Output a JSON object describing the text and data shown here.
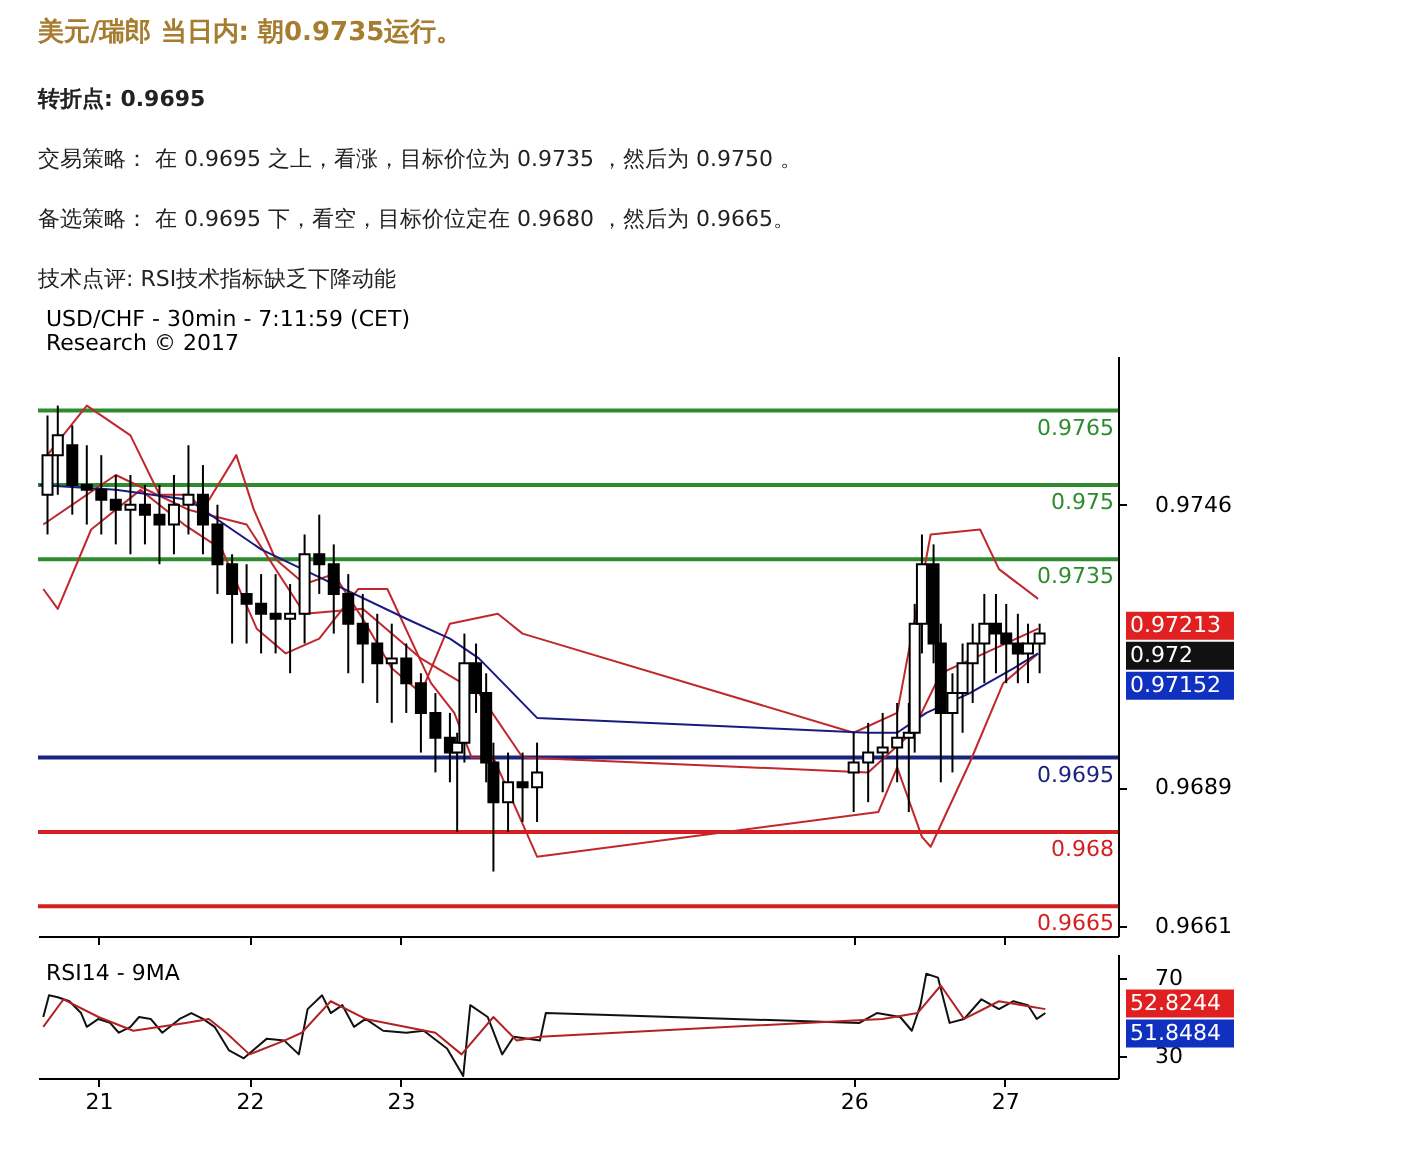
{
  "chart_data": [
    {
      "type": "candlestick",
      "title": "美元/瑞郎 当日内: 朝0.9735运行。",
      "annotations": [
        "转折点: 0.9695",
        "交易策略： 在 0.9695 之上，看涨，目标价位为 0.9735 ，然后为 0.9750 。",
        "备选策略： 在 0.9695 下，看空，目标价位定在 0.9680 ，然后为 0.9665。",
        "技术点评: RSI技术指标缺乏下降动能",
        "USD/CHF - 30min - 7:11:59 (CET)",
        "Research © 2017",
        "0.97213",
        "0.972",
        "0.97152"
      ],
      "x": [
        20.663,
        20.731,
        20.827,
        20.923,
        21.019,
        21.115,
        21.212,
        21.308,
        21.404,
        21.5,
        21.596,
        21.692,
        21.788,
        21.885,
        21.981,
        22.077,
        22.173,
        22.269,
        22.365,
        22.462,
        22.558,
        22.654,
        22.75,
        22.846,
        22.942,
        23.038,
        23.135,
        23.231,
        23.327,
        23.375,
        23.423,
        23.5,
        23.567,
        23.615,
        23.712,
        23.808,
        23.904,
        26.0,
        26.096,
        26.192,
        26.288,
        26.365,
        26.404,
        26.452,
        26.529,
        26.577,
        26.654,
        26.721,
        26.788,
        26.865,
        26.942,
        27.01,
        27.087,
        27.154,
        27.231
      ],
      "ohlc": [
        [
          0.9748,
          0.9764,
          0.974,
          0.9756
        ],
        [
          0.9756,
          0.9766,
          0.9748,
          0.976
        ],
        [
          0.9758,
          0.9762,
          0.9744,
          0.975
        ],
        [
          0.975,
          0.9758,
          0.9742,
          0.9749
        ],
        [
          0.9749,
          0.9756,
          0.974,
          0.9747
        ],
        [
          0.9747,
          0.9752,
          0.9738,
          0.9745
        ],
        [
          0.9745,
          0.9752,
          0.9736,
          0.9746
        ],
        [
          0.9746,
          0.975,
          0.9738,
          0.9744
        ],
        [
          0.9744,
          0.975,
          0.9734,
          0.9742
        ],
        [
          0.9742,
          0.9752,
          0.9736,
          0.9746
        ],
        [
          0.9746,
          0.9758,
          0.974,
          0.9748
        ],
        [
          0.9748,
          0.9754,
          0.9736,
          0.9742
        ],
        [
          0.9742,
          0.9746,
          0.9728,
          0.9734
        ],
        [
          0.9734,
          0.9736,
          0.9718,
          0.9728
        ],
        [
          0.9728,
          0.9734,
          0.9718,
          0.9726
        ],
        [
          0.9726,
          0.9732,
          0.9716,
          0.9724
        ],
        [
          0.9724,
          0.9732,
          0.9716,
          0.9723
        ],
        [
          0.9723,
          0.973,
          0.9712,
          0.9724
        ],
        [
          0.9724,
          0.974,
          0.9718,
          0.9736
        ],
        [
          0.9736,
          0.9744,
          0.9728,
          0.9734
        ],
        [
          0.9734,
          0.9738,
          0.972,
          0.9728
        ],
        [
          0.9728,
          0.9732,
          0.9712,
          0.9722
        ],
        [
          0.9722,
          0.9728,
          0.971,
          0.9718
        ],
        [
          0.9718,
          0.9724,
          0.9706,
          0.9714
        ],
        [
          0.9714,
          0.9722,
          0.9702,
          0.9715
        ],
        [
          0.9715,
          0.9718,
          0.9704,
          0.971
        ],
        [
          0.971,
          0.9712,
          0.9696,
          0.9704
        ],
        [
          0.9704,
          0.9708,
          0.9692,
          0.9699
        ],
        [
          0.9699,
          0.9704,
          0.969,
          0.9696
        ],
        [
          0.9696,
          0.97,
          0.968,
          0.9698
        ],
        [
          0.9698,
          0.972,
          0.9694,
          0.9714
        ],
        [
          0.9714,
          0.9718,
          0.9704,
          0.9708
        ],
        [
          0.9708,
          0.9712,
          0.969,
          0.9694
        ],
        [
          0.9694,
          0.9698,
          0.9672,
          0.9686
        ],
        [
          0.9686,
          0.9696,
          0.968,
          0.969
        ],
        [
          0.969,
          0.9696,
          0.9682,
          0.9689
        ],
        [
          0.9689,
          0.9698,
          0.9682,
          0.9692
        ],
        [
          0.9692,
          0.97,
          0.9684,
          0.9694
        ],
        [
          0.9694,
          0.9702,
          0.9686,
          0.9696
        ],
        [
          0.9696,
          0.9704,
          0.9688,
          0.9697
        ],
        [
          0.9697,
          0.9706,
          0.969,
          0.9699
        ],
        [
          0.9699,
          0.9706,
          0.9684,
          0.97
        ],
        [
          0.97,
          0.9726,
          0.9696,
          0.9722
        ],
        [
          0.9722,
          0.974,
          0.9716,
          0.9734
        ],
        [
          0.9734,
          0.9738,
          0.9714,
          0.9718
        ],
        [
          0.9718,
          0.9722,
          0.969,
          0.9704
        ],
        [
          0.9704,
          0.9712,
          0.9692,
          0.9708
        ],
        [
          0.9708,
          0.9718,
          0.97,
          0.9714
        ],
        [
          0.9714,
          0.9722,
          0.9706,
          0.9718
        ],
        [
          0.9718,
          0.9728,
          0.971,
          0.9722
        ],
        [
          0.9722,
          0.9728,
          0.9712,
          0.972
        ],
        [
          0.972,
          0.9726,
          0.971,
          0.9718
        ],
        [
          0.9718,
          0.9724,
          0.971,
          0.9716
        ],
        [
          0.9716,
          0.9722,
          0.971,
          0.9718
        ],
        [
          0.9718,
          0.9722,
          0.9712,
          0.972
        ]
      ],
      "series": [
        {
          "type": "line",
          "color": "#c0282d",
          "x": [
            20.635,
            20.923,
            21.212,
            21.404,
            21.596,
            21.692,
            21.913,
            22.029,
            22.173,
            22.365,
            22.558,
            22.75,
            22.942,
            23.135,
            23.327,
            23.644,
            23.808,
            26.0,
            26.288,
            26.51,
            26.837,
            26.962,
            27.221
          ],
          "values": [
            0.9755,
            0.9766,
            0.976,
            0.9748,
            0.9748,
            0.9745,
            0.9756,
            0.9745,
            0.9735,
            0.973,
            0.9732,
            0.9723,
            0.9713,
            0.9708,
            0.9722,
            0.9724,
            0.972,
            0.97,
            0.9704,
            0.974,
            0.9741,
            0.9733,
            0.9727
          ]
        },
        {
          "type": "line",
          "color": "#c0282d",
          "x": [
            20.635,
            20.731,
            20.952,
            21.279,
            21.567,
            21.817,
            22.048,
            22.24,
            22.462,
            22.721,
            22.913,
            23.202,
            23.356,
            23.471,
            23.615,
            23.904,
            26.163,
            26.288,
            26.452,
            26.51,
            26.769,
            26.99,
            27.221
          ],
          "values": [
            0.9729,
            0.9725,
            0.9741,
            0.9749,
            0.9742,
            0.9737,
            0.9721,
            0.9716,
            0.9719,
            0.9729,
            0.9729,
            0.971,
            0.9704,
            0.9695,
            0.9695,
            0.9675,
            0.9684,
            0.9693,
            0.9679,
            0.9677,
            0.9694,
            0.971,
            0.9716
          ]
        },
        {
          "type": "line",
          "color": "#c0282d",
          "x": [
            20.635,
            21.115,
            21.596,
            21.981,
            22.365,
            22.75,
            23.135,
            23.519,
            23.808,
            26.096,
            26.385,
            26.577,
            26.865,
            27.221
          ],
          "values": [
            0.9742,
            0.9752,
            0.9745,
            0.9742,
            0.9724,
            0.9725,
            0.9715,
            0.9708,
            0.9695,
            0.9692,
            0.97,
            0.9712,
            0.9716,
            0.9721
          ]
        },
        {
          "type": "line",
          "color": "#1a1a80",
          "x": [
            20.61,
            21.115,
            21.596,
            22.077,
            22.558,
            23.038,
            23.327,
            23.519,
            23.712,
            23.904,
            26.096,
            26.288,
            26.481,
            26.769,
            27.058,
            27.221
          ],
          "values": [
            0.975,
            0.9749,
            0.9747,
            0.9737,
            0.973,
            0.9723,
            0.9719,
            0.9715,
            0.9709,
            0.9703,
            0.97,
            0.97,
            0.9704,
            0.9708,
            0.9713,
            0.9716
          ]
        }
      ],
      "ref_lines": [
        {
          "axis": "y",
          "value": 0.9765,
          "label": "0.9765",
          "color": "#2e8b2e"
        },
        {
          "axis": "y",
          "value": 0.975,
          "label": "0.975",
          "color": "#2e8b2e"
        },
        {
          "axis": "y",
          "value": 0.9735,
          "label": "0.9735",
          "color": "#2e8b2e"
        },
        {
          "axis": "y",
          "value": 0.9695,
          "label": "0.9695",
          "color": "#1a237e"
        },
        {
          "axis": "y",
          "value": 0.968,
          "label": "0.968",
          "color": "#d42020"
        },
        {
          "axis": "y",
          "value": 0.9665,
          "label": "0.9665",
          "color": "#d42020"
        }
      ],
      "xlim": [
        20.6,
        27.75
      ],
      "ylim": [
        0.9659,
        0.9776
      ],
      "yticks": [
        0.9746,
        0.9689,
        0.9661
      ],
      "xticks": [
        21,
        22,
        23,
        26,
        27
      ],
      "tick_labels": "y",
      "grid": false
    },
    {
      "type": "line",
      "title": "RSI14 - 9MA",
      "annotations": [
        "52.8244",
        "51.8484"
      ],
      "series": [
        {
          "color": "#111111",
          "x": [
            20.635,
            20.673,
            20.731,
            20.808,
            20.885,
            20.923,
            21.0,
            21.077,
            21.135,
            21.212,
            21.269,
            21.346,
            21.423,
            21.538,
            21.615,
            21.692,
            21.769,
            21.865,
            21.962,
            22.038,
            22.115,
            22.231,
            22.327,
            22.385,
            22.481,
            22.538,
            22.615,
            22.692,
            22.769,
            22.885,
            23.038,
            23.154,
            23.308,
            23.415,
            23.462,
            23.577,
            23.673,
            23.75,
            23.923,
            23.962,
            26.038,
            26.154,
            26.308,
            26.385,
            26.442,
            26.481,
            26.558,
            26.635,
            26.731,
            26.846,
            26.962,
            27.058,
            27.154,
            27.212,
            27.269
          ],
          "values": [
            50,
            61,
            60,
            58,
            52,
            45,
            49,
            47,
            42,
            45,
            50,
            49,
            42,
            49,
            52,
            49,
            45,
            33,
            29,
            34,
            39,
            38,
            31,
            54,
            61,
            52,
            56,
            45,
            49,
            43,
            42,
            43,
            34,
            20,
            56,
            50,
            31,
            40,
            38,
            52,
            47,
            52,
            50,
            43,
            56,
            72,
            70,
            47,
            49,
            59,
            54,
            58,
            56,
            49,
            52
          ]
        },
        {
          "color": "#b22222",
          "x": [
            20.635,
            20.769,
            21.0,
            21.231,
            21.577,
            21.731,
            21.846,
            22.0,
            22.231,
            22.346,
            22.538,
            22.769,
            23.231,
            23.404,
            23.615,
            23.769,
            23.923,
            26.192,
            26.423,
            26.577,
            26.731,
            26.962,
            27.269
          ],
          "values": [
            45,
            59,
            50,
            43,
            47,
            49,
            42,
            31,
            38,
            42,
            58,
            49,
            42,
            31,
            50,
            38,
            40,
            49,
            52,
            66,
            49,
            58,
            54
          ]
        }
      ],
      "xlim": [
        20.6,
        27.75
      ],
      "ylim": [
        19,
        82
      ],
      "yticks": [
        70,
        30
      ],
      "xticks": [
        21,
        22,
        23,
        26,
        27
      ],
      "grid": false
    }
  ]
}
